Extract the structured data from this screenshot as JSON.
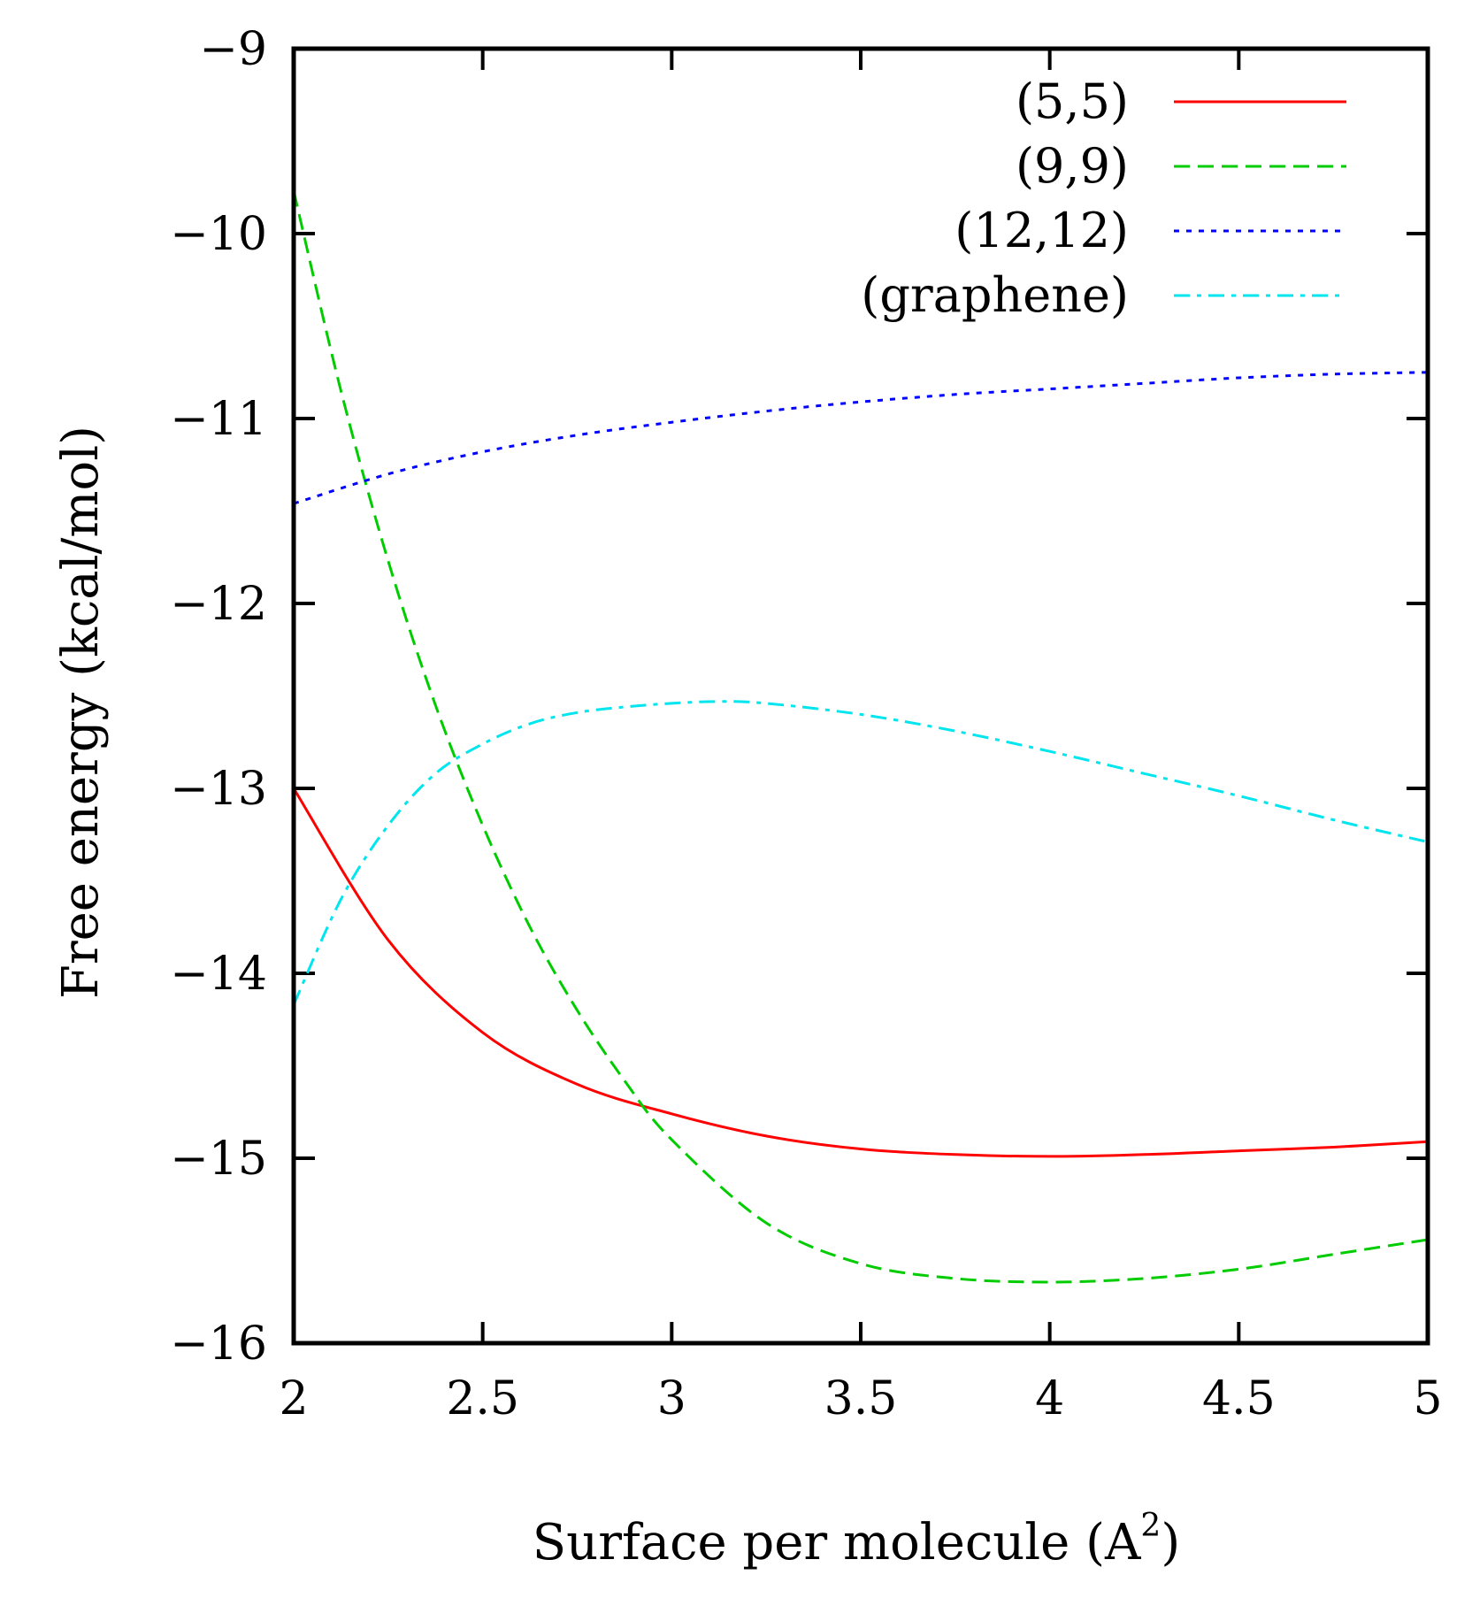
{
  "chart_data": {
    "type": "line",
    "title": "",
    "xlabel": "Surface per molecule (A",
    "xlabel_sup": "2",
    "xlabel_close": ")",
    "ylabel": "Free energy (kcal/mol)",
    "xlim": [
      2,
      5
    ],
    "ylim": [
      -16,
      -9
    ],
    "xticks": [
      2,
      2.5,
      3,
      3.5,
      4,
      4.5,
      5
    ],
    "xtick_labels": [
      "2",
      "2.5",
      "3",
      "3.5",
      "4",
      "4.5",
      "5"
    ],
    "yticks": [
      -16,
      -15,
      -14,
      -13,
      -12,
      -11,
      -10,
      -9
    ],
    "ytick_labels": [
      "−16",
      "−15",
      "−14",
      "−13",
      "−12",
      "−11",
      "−10",
      "−9"
    ],
    "legend_position": "top-right",
    "series": [
      {
        "name": "(5,5)",
        "color": "#ff0000",
        "dash": "solid",
        "x": [
          2.0,
          2.25,
          2.5,
          2.75,
          3.0,
          3.25,
          3.5,
          3.75,
          4.0,
          4.25,
          4.5,
          4.75,
          5.0
        ],
        "y": [
          -13.0,
          -13.82,
          -14.32,
          -14.6,
          -14.76,
          -14.88,
          -14.95,
          -14.98,
          -14.99,
          -14.98,
          -14.96,
          -14.94,
          -14.91
        ]
      },
      {
        "name": "(9,9)",
        "color": "#00cc00",
        "dash": "dashed",
        "x": [
          2.0,
          2.125,
          2.25,
          2.375,
          2.5,
          2.625,
          2.75,
          2.875,
          3.0,
          3.25,
          3.5,
          3.75,
          4.0,
          4.25,
          4.5,
          4.75,
          5.0
        ],
        "y": [
          -9.77,
          -10.85,
          -11.77,
          -12.55,
          -13.2,
          -13.75,
          -14.2,
          -14.58,
          -14.9,
          -15.35,
          -15.57,
          -15.65,
          -15.67,
          -15.65,
          -15.6,
          -15.52,
          -15.44
        ]
      },
      {
        "name": "(12,12)",
        "color": "#0000ff",
        "dash": "dotted",
        "x": [
          2.0,
          2.25,
          2.5,
          2.75,
          3.0,
          3.25,
          3.5,
          3.75,
          4.0,
          4.25,
          4.5,
          4.75,
          5.0
        ],
        "y": [
          -11.46,
          -11.3,
          -11.18,
          -11.09,
          -11.02,
          -10.96,
          -10.91,
          -10.87,
          -10.84,
          -10.81,
          -10.78,
          -10.76,
          -10.75
        ]
      },
      {
        "name": "(graphene)",
        "color": "#00e5ee",
        "dash": "dashdot",
        "x": [
          2.0,
          2.125,
          2.25,
          2.375,
          2.5,
          2.625,
          2.75,
          2.875,
          3.0,
          3.125,
          3.25,
          3.5,
          3.75,
          4.0,
          4.25,
          4.5,
          4.75,
          5.0
        ],
        "y": [
          -14.17,
          -13.6,
          -13.2,
          -12.92,
          -12.76,
          -12.65,
          -12.59,
          -12.56,
          -12.54,
          -12.53,
          -12.54,
          -12.6,
          -12.69,
          -12.8,
          -12.92,
          -13.04,
          -13.17,
          -13.29
        ]
      }
    ]
  }
}
